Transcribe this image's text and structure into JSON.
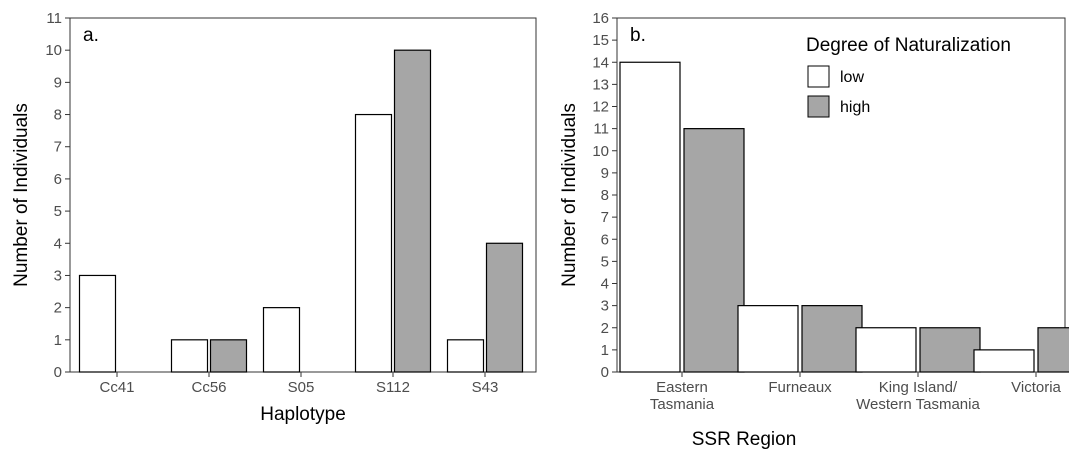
{
  "chart_data": [
    {
      "type": "bar",
      "panel_label": "a.",
      "categories": [
        "Cc41",
        "Cc56",
        "S05",
        "S112",
        "S43"
      ],
      "xlabel": "Haplotype",
      "ylabel": "Number of Individuals",
      "ylim": [
        0,
        11
      ],
      "yticks": [
        0,
        1,
        2,
        3,
        4,
        5,
        6,
        7,
        8,
        9,
        10,
        11
      ],
      "grid": false,
      "series": [
        {
          "name": "low",
          "color": "#ffffff",
          "values": [
            3,
            1,
            2,
            8,
            1
          ]
        },
        {
          "name": "high",
          "color": "#a6a6a6",
          "values": [
            null,
            1,
            null,
            10,
            4
          ]
        }
      ]
    },
    {
      "type": "bar",
      "panel_label": "b.",
      "categories": [
        "Eastern\nTasmania",
        "Furneaux",
        "King Island/\nWestern Tasmania",
        "Victoria"
      ],
      "xlabel": "SSR Region",
      "ylabel": "Number of Individuals",
      "ylim": [
        0,
        16
      ],
      "yticks": [
        0,
        1,
        2,
        3,
        4,
        5,
        6,
        7,
        8,
        9,
        10,
        11,
        12,
        13,
        14,
        15,
        16
      ],
      "grid": false,
      "legend": {
        "title": "Degree of Naturalization",
        "placement": "top-right",
        "entries": [
          {
            "label": "low",
            "color": "#ffffff"
          },
          {
            "label": "high",
            "color": "#a6a6a6"
          }
        ]
      },
      "series": [
        {
          "name": "low",
          "color": "#ffffff",
          "values": [
            14,
            3,
            2,
            1
          ]
        },
        {
          "name": "high",
          "color": "#a6a6a6",
          "values": [
            11,
            3,
            2,
            2
          ]
        }
      ]
    }
  ]
}
